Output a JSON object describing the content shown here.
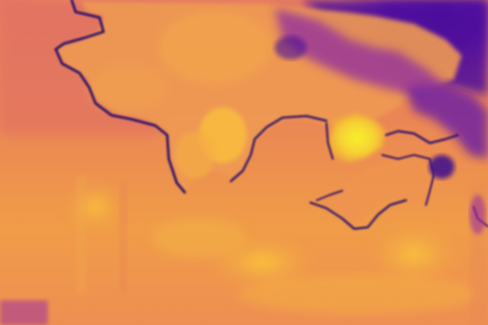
{
  "image": {
    "kind": "depth-map",
    "colormap": "plasma",
    "colors": {
      "far": "#3a0a8c",
      "deep_purple": "#5a14a0",
      "purple": "#7c1fa5",
      "magenta": "#b43c98",
      "pink": "#d8607a",
      "orange": "#ee8a4c",
      "light_orange": "#f6a845",
      "gold": "#fbc63a",
      "yellow": "#f7ec2a",
      "edge_dark": "#23086a"
    }
  }
}
